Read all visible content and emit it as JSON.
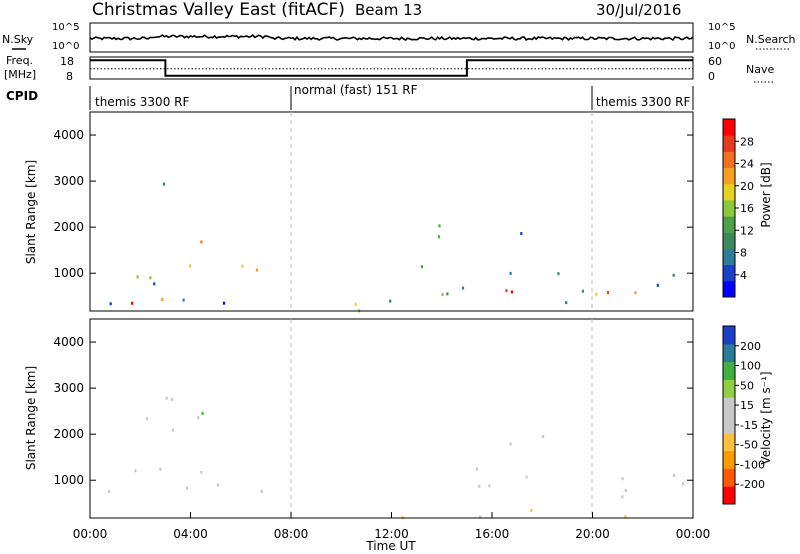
{
  "header": {
    "title": "Christmas Valley East (fitACF)",
    "beam": "Beam 13",
    "date": "30/Jul/2016"
  },
  "top_panels": {
    "nsky_label": "N.Sky",
    "nsearch_label": "N.Search",
    "nsky_ticks": [
      "10^5",
      "10^0"
    ],
    "nsearch_ticks": [
      "10^5",
      "10^0"
    ],
    "freq_label_1": "Freq.",
    "freq_label_2": "[MHz]",
    "freq_ticks": [
      "18",
      "8"
    ],
    "nave_label": "Nave",
    "nave_ticks": [
      "60",
      "0"
    ],
    "cpid_label": "CPID",
    "cpid_segments": [
      {
        "label": "themis 3300 RF",
        "start_hour": 0,
        "end_hour": 8
      },
      {
        "label": "normal (fast) 151 RF",
        "start_hour": 8,
        "end_hour": 20
      },
      {
        "label": "themis 3300 RF",
        "start_hour": 20,
        "end_hour": 24
      }
    ],
    "freq_series_mhz": [
      [
        0,
        16.5
      ],
      [
        3,
        16.5
      ],
      [
        3,
        9.5
      ],
      [
        15,
        9.5
      ],
      [
        15,
        16.5
      ],
      [
        24,
        16.5
      ]
    ],
    "nave_series": [
      [
        0,
        28
      ],
      [
        24,
        28
      ]
    ]
  },
  "chart_data": [
    {
      "type": "heatmap",
      "panel": "power",
      "x_label": "",
      "ylabel": "Slant Range [km]",
      "xlim": [
        0,
        24
      ],
      "ylim": [
        180,
        4500
      ],
      "yticks": [
        "4000",
        "3000",
        "2000",
        "1000"
      ],
      "colorbar_label": "Power [dB]",
      "colorbar_ticks": [
        "28",
        "24",
        "20",
        "16",
        "12",
        "8",
        "4"
      ],
      "colorbar_range": [
        0,
        30
      ],
      "colors": [
        "#0000ff",
        "#1a40c8",
        "#2e7d9a",
        "#3a8a5e",
        "#4fa04a",
        "#8cc83c",
        "#e6d21e",
        "#f5a020",
        "#f07020",
        "#e83a1e",
        "#ff0000"
      ],
      "scatter_regions": [
        {
          "t0": 0.0,
          "t1": 3.5,
          "r0": 600,
          "r1": 1300,
          "level": 10,
          "spread": 10
        },
        {
          "t0": 1.5,
          "t1": 4.2,
          "r0": 300,
          "r1": 800,
          "level": 27,
          "spread": 6
        },
        {
          "t0": 3.5,
          "t1": 7.8,
          "r0": 600,
          "r1": 1200,
          "level": 12,
          "spread": 10
        },
        {
          "t0": 1.8,
          "t1": 3.5,
          "r0": 2700,
          "r1": 3100,
          "level": 12,
          "spread": 8
        },
        {
          "t0": 2.8,
          "t1": 4.8,
          "r0": 1500,
          "r1": 2100,
          "level": 20,
          "spread": 8
        },
        {
          "t0": 0.0,
          "t1": 24.0,
          "r0": 200,
          "r1": 450,
          "level": 9,
          "spread": 8
        },
        {
          "t0": 13.0,
          "t1": 19.5,
          "r0": 500,
          "r1": 1300,
          "level": 14,
          "spread": 10
        },
        {
          "t0": 14.0,
          "t1": 17.0,
          "r0": 600,
          "r1": 1100,
          "level": 27,
          "spread": 5
        },
        {
          "t0": 19.5,
          "t1": 24.0,
          "r0": 400,
          "r1": 1300,
          "level": 14,
          "spread": 10
        },
        {
          "t0": 20.0,
          "t1": 21.5,
          "r0": 400,
          "r1": 900,
          "level": 27,
          "spread": 5
        },
        {
          "t0": 13.5,
          "t1": 18.0,
          "r0": 1800,
          "r1": 2300,
          "level": 8,
          "spread": 6
        }
      ]
    },
    {
      "type": "heatmap",
      "panel": "velocity",
      "x_label": "Time UT",
      "xticks": [
        "00:00",
        "04:00",
        "08:00",
        "12:00",
        "16:00",
        "20:00",
        "00:00"
      ],
      "ylabel": "Slant Range [km]",
      "xlim": [
        0,
        24
      ],
      "ylim": [
        180,
        4500
      ],
      "yticks": [
        "4000",
        "3000",
        "2000",
        "1000"
      ],
      "colorbar_label": "Velocity [m s⁻¹]",
      "colorbar_ticks": [
        "200",
        "100",
        "50",
        "15",
        "-15",
        "-50",
        "-100",
        "-200"
      ],
      "colorbar_range": [
        -250,
        250
      ],
      "colors": [
        "#ff0000",
        "#ff5a00",
        "#ff9a00",
        "#ffc040",
        "#c8c8c8",
        "#c8c8c8",
        "#90d040",
        "#40b040",
        "#2a7a9a",
        "#1a40c8"
      ],
      "scatter_regions": [
        {
          "t0": 0.0,
          "t1": 7.8,
          "r0": 500,
          "r1": 1300,
          "level": 0,
          "spread": 0
        },
        {
          "t0": 1.8,
          "t1": 4.8,
          "r0": 1500,
          "r1": 3100,
          "level": 0,
          "spread": 0
        },
        {
          "t0": 2.8,
          "t1": 4.5,
          "r0": 2100,
          "r1": 2500,
          "level": 150,
          "spread": 60
        },
        {
          "t0": 8.0,
          "t1": 24.0,
          "r0": 200,
          "r1": 450,
          "level": -40,
          "spread": 30
        },
        {
          "t0": 13.0,
          "t1": 24.0,
          "r0": 600,
          "r1": 1300,
          "level": 0,
          "spread": 0
        },
        {
          "t0": 13.5,
          "t1": 19.0,
          "r0": 1800,
          "r1": 2200,
          "level": 0,
          "spread": 0
        }
      ]
    }
  ]
}
